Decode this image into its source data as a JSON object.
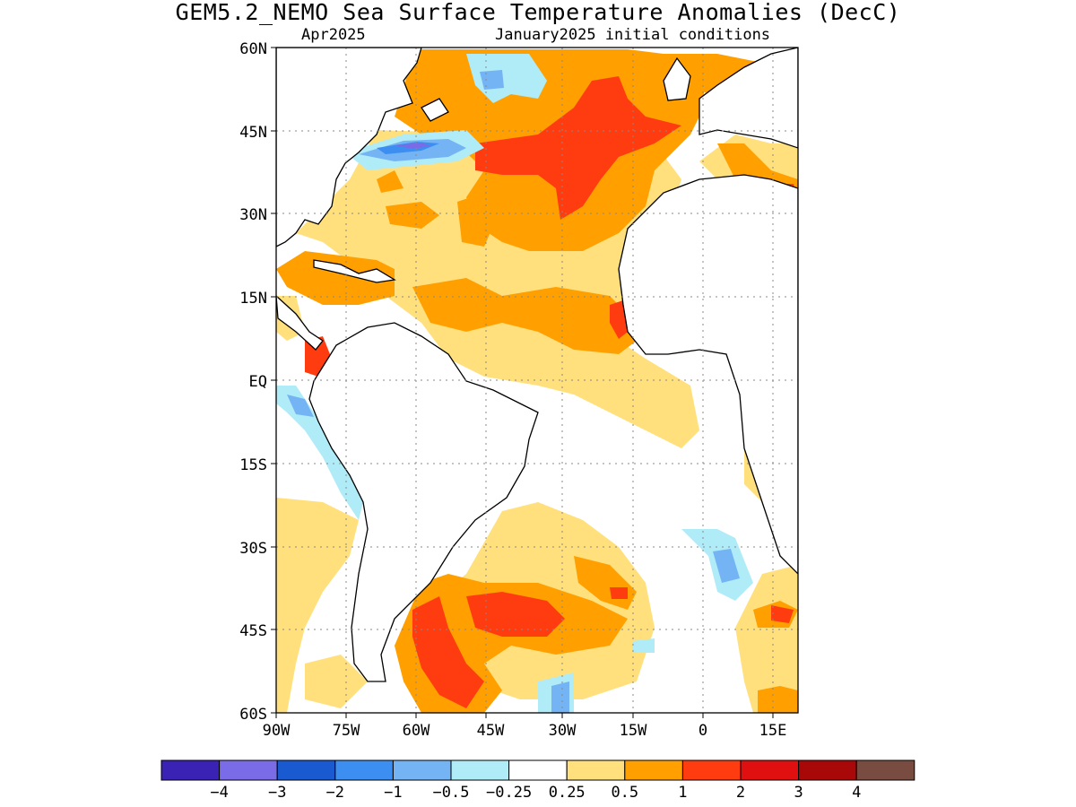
{
  "title": "GEM5.2_NEMO Sea Surface Temperature Anomalies (DecC)",
  "subtitle_left": "Apr2025",
  "subtitle_right": "January2025 initial conditions",
  "latitude_labels": [
    "60N",
    "45N",
    "30N",
    "15N",
    "EQ",
    "15S",
    "30S",
    "45S",
    "60S"
  ],
  "longitude_labels": [
    "90W",
    "75W",
    "60W",
    "45W",
    "30W",
    "15W",
    "0",
    "15E"
  ],
  "colorbar": {
    "colors": [
      "#3a22b4",
      "#7a6ce6",
      "#1a5ad0",
      "#3c8ef0",
      "#74b4f4",
      "#b0ecf8",
      "#ffffff",
      "#ffe07c",
      "#ffa000",
      "#ff3c10",
      "#e01010",
      "#a80808",
      "#784c40"
    ],
    "labels": [
      "-4",
      "-3",
      "-2",
      "-1",
      "-0.5",
      "-0.25",
      "0.25",
      "0.5",
      "1",
      "2",
      "3",
      "4"
    ]
  }
}
